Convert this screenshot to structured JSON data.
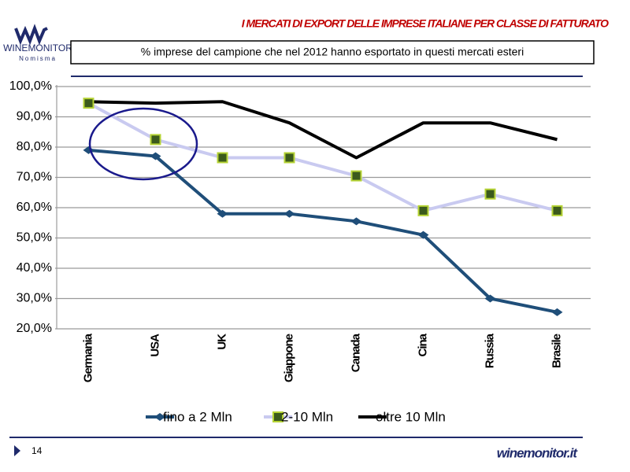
{
  "header": {
    "title": "I MERCATI DI EXPORT DELLE IMPRESE ITALIANE PER CLASSE DI FATTURATO",
    "logo": "WINEMONITOR",
    "logo_sub": "Nomisma"
  },
  "footer": {
    "page": "14",
    "site": "winemonitor.it"
  },
  "chart_data": {
    "type": "line",
    "subtitle": "% imprese del campione che nel 2012 hanno esportato in questi mercati esteri",
    "categories": [
      "Germania",
      "USA",
      "UK",
      "Giappone",
      "Canada",
      "Cina",
      "Russia",
      "Brasile"
    ],
    "series": [
      {
        "name": "fino a 2 Mln",
        "color": "#1f4e79",
        "marker": "diamond",
        "values": [
          79,
          77,
          58,
          58,
          55.5,
          51,
          30,
          25.5
        ]
      },
      {
        "name": "2-10 Mln",
        "color": "#c9caf0",
        "marker": "square",
        "marker_color": "#3b5a1c",
        "values": [
          94.5,
          82.5,
          76.5,
          76.5,
          70.5,
          59,
          64.5,
          59
        ]
      },
      {
        "name": "oltre 10 Mln",
        "color": "#000000",
        "marker": "none",
        "values": [
          95,
          94.5,
          95,
          88,
          76.5,
          88,
          88,
          82.5
        ]
      }
    ],
    "ylim": [
      20,
      100
    ],
    "yticks": [
      {
        "value": 20,
        "label": "20,0%"
      },
      {
        "value": 30,
        "label": "30,0%"
      },
      {
        "value": 40,
        "label": "40,0%"
      },
      {
        "value": 50,
        "label": "50,0%"
      },
      {
        "value": 60,
        "label": "60,0%"
      },
      {
        "value": 70,
        "label": "70,0%"
      },
      {
        "value": 80,
        "label": "80,0%"
      },
      {
        "value": 90,
        "label": "90,0%"
      },
      {
        "value": 100,
        "label": "100,0%"
      }
    ],
    "grid": true
  }
}
